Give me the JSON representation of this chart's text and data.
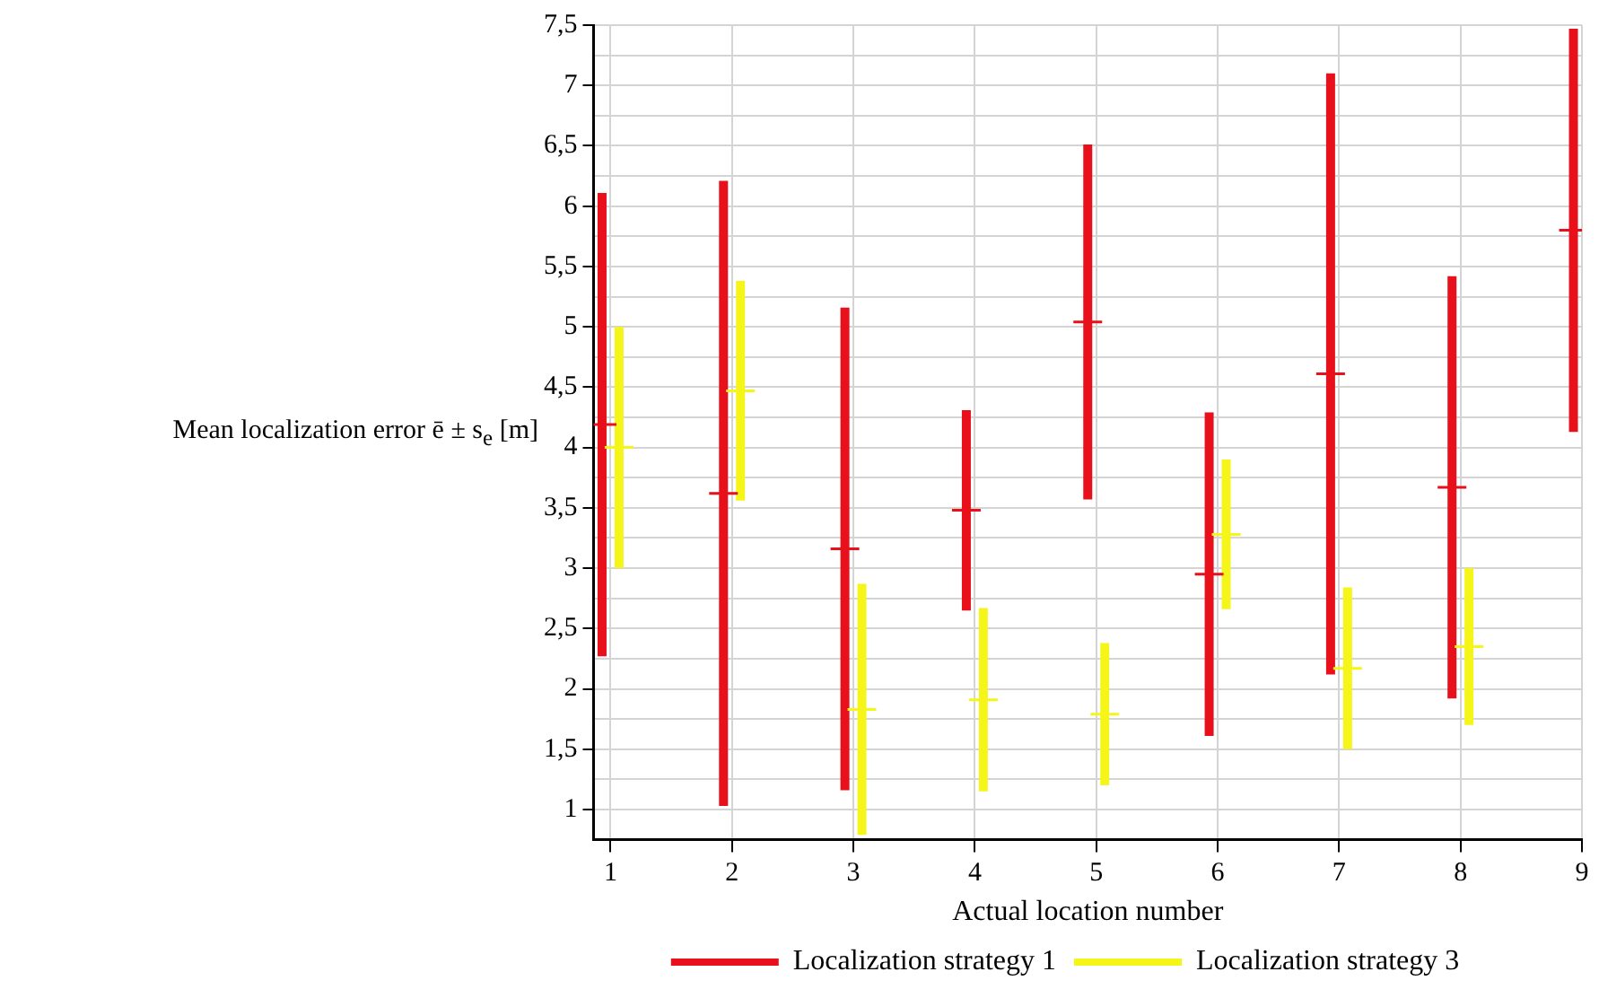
{
  "chart_data": {
    "type": "scatter",
    "xlabel": "Actual location number",
    "ylabel": "Mean localization error ē ± s$_{e}$ [m]",
    "xlim": [
      0.86,
      9
    ],
    "xticks": [
      1,
      2,
      3,
      4,
      5,
      6,
      7,
      8,
      9
    ],
    "ylim": [
      0.75,
      7.5
    ],
    "yticks": [
      1,
      {
        "value": 1.25,
        "label": null
      },
      {
        "value": 1.5,
        "label": "1,5"
      },
      {
        "value": 1.75,
        "label": null
      },
      2,
      {
        "value": 2.25,
        "label": null
      },
      {
        "value": 2.5,
        "label": "2,5"
      },
      {
        "value": 2.75,
        "label": null
      },
      3,
      {
        "value": 3.25,
        "label": null
      },
      {
        "value": 3.5,
        "label": "3,5"
      },
      {
        "value": 3.75,
        "label": null
      },
      4,
      {
        "value": 4.25,
        "label": null
      },
      {
        "value": 4.5,
        "label": "4,5"
      },
      {
        "value": 4.75,
        "label": null
      },
      5,
      {
        "value": 5.25,
        "label": null
      },
      {
        "value": 5.5,
        "label": "5,5"
      },
      {
        "value": 5.75,
        "label": null
      },
      6,
      {
        "value": 6.25,
        "label": null
      },
      {
        "value": 6.5,
        "label": "6,5"
      },
      {
        "value": 6.75,
        "label": null
      },
      7,
      {
        "value": 7.25,
        "label": null
      },
      {
        "value": 7.5,
        "label": "7,5"
      }
    ],
    "grid": true,
    "legend": "bottom",
    "marker": "cross",
    "series": [
      {
        "name": "Localization strategy 1",
        "color": "#e8101a",
        "x": [
          0.93,
          1.93,
          2.93,
          3.93,
          4.93,
          5.93,
          6.93,
          7.93,
          8.93
        ],
        "values": [
          4.19,
          3.62,
          3.16,
          3.48,
          5.04,
          2.95,
          4.61,
          3.67,
          5.8
        ],
        "errors": [
          1.92,
          2.59,
          2.0,
          0.83,
          1.47,
          1.34,
          2.49,
          1.75,
          1.67
        ]
      },
      {
        "name": "Localization strategy 3",
        "color": "#f5f51a",
        "x": [
          1.07,
          2.07,
          3.07,
          4.07,
          5.07,
          6.07,
          7.07,
          8.07
        ],
        "values": [
          4.0,
          4.47,
          1.83,
          1.91,
          1.79,
          3.28,
          2.17,
          2.35
        ],
        "errors": [
          1.0,
          0.91,
          1.04,
          0.76,
          0.59,
          0.62,
          0.67,
          0.65
        ]
      }
    ]
  }
}
